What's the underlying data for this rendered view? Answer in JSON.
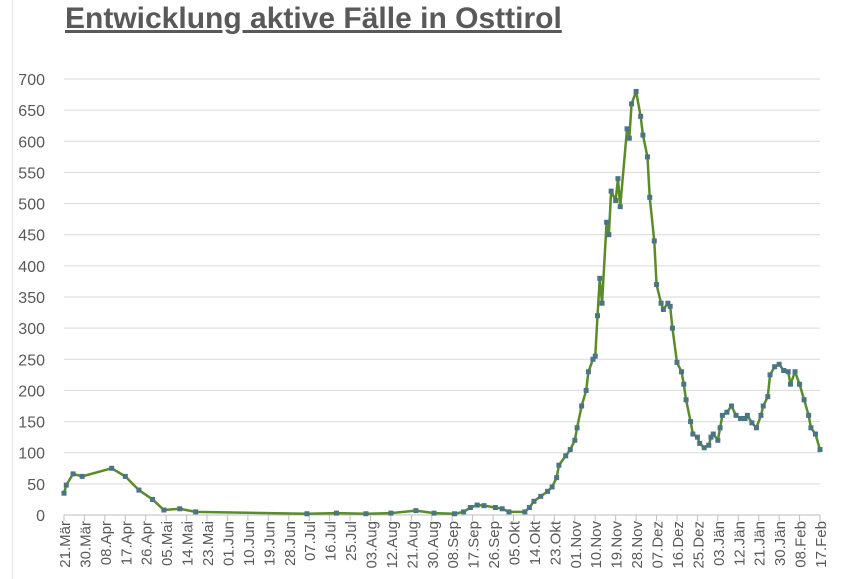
{
  "chart_data": {
    "type": "line",
    "title": "Entwicklung aktive Fälle in Osttirol",
    "xlabel": "",
    "ylabel": "",
    "ylim": [
      0,
      700
    ],
    "yticks": [
      "0",
      "50",
      "100",
      "150",
      "200",
      "250",
      "300",
      "350",
      "400",
      "450",
      "500",
      "550",
      "600",
      "650",
      "700"
    ],
    "xlim": [
      "2020-03-21",
      "2021-02-17"
    ],
    "xticks": [
      "21.Mär",
      "30.Mär",
      "08.Apr",
      "17.Apr",
      "26.Apr",
      "05.Mai",
      "14.Mai",
      "23.Mai",
      "01.Jun",
      "10.Jun",
      "19.Jun",
      "28.Jun",
      "07.Jul",
      "16.Jul",
      "25.Jul",
      "03.Aug",
      "12.Aug",
      "21.Aug",
      "30.Aug",
      "08.Sep",
      "17.Sep",
      "26.Sep",
      "05.Okt",
      "14.Okt",
      "23.Okt",
      "01.Nov",
      "10.Nov",
      "19.Nov",
      "28.Nov",
      "07.Dez",
      "16.Dez",
      "25.Dez",
      "03.Jän",
      "12.Jän",
      "21.Jän",
      "30.Jän",
      "08.Feb",
      "17.Feb"
    ],
    "grid": true,
    "line_color": "#5b8c2a",
    "marker_color": "#4a7585",
    "series": [
      {
        "x": [
          "2020-03-21",
          "2020-03-22",
          "2020-03-25",
          "2020-03-29",
          "2020-04-11",
          "2020-04-17",
          "2020-04-23",
          "2020-04-29",
          "2020-05-04",
          "2020-05-11",
          "2020-05-18",
          "2020-07-06",
          "2020-07-19",
          "2020-08-01",
          "2020-08-12",
          "2020-08-23",
          "2020-08-31",
          "2020-09-09",
          "2020-09-13",
          "2020-09-16",
          "2020-09-19",
          "2020-09-22",
          "2020-09-27",
          "2020-09-30",
          "2020-10-03",
          "2020-10-10",
          "2020-10-12",
          "2020-10-14",
          "2020-10-17",
          "2020-10-20",
          "2020-10-22",
          "2020-10-24",
          "2020-10-25",
          "2020-10-28",
          "2020-10-30",
          "2020-11-01",
          "2020-11-02",
          "2020-11-04",
          "2020-11-06",
          "2020-11-07",
          "2020-11-09",
          "2020-11-10",
          "2020-11-11",
          "2020-11-12",
          "2020-11-13",
          "2020-11-15",
          "2020-11-16",
          "2020-11-17",
          "2020-11-19",
          "2020-11-20",
          "2020-11-21",
          "2020-11-24",
          "2020-11-25",
          "2020-11-26",
          "2020-11-28",
          "2020-11-30",
          "2020-12-01",
          "2020-12-03",
          "2020-12-04",
          "2020-12-06",
          "2020-12-07",
          "2020-12-09",
          "2020-12-10",
          "2020-12-12",
          "2020-12-13",
          "2020-12-14",
          "2020-12-16",
          "2020-12-18",
          "2020-12-19",
          "2020-12-20",
          "2020-12-22",
          "2020-12-23",
          "2020-12-25",
          "2020-12-26",
          "2020-12-28",
          "2020-12-30",
          "2020-12-31",
          "2021-01-01",
          "2021-01-03",
          "2021-01-04",
          "2021-01-05",
          "2021-01-07",
          "2021-01-09",
          "2021-01-11",
          "2021-01-13",
          "2021-01-15",
          "2021-01-16",
          "2021-01-18",
          "2021-01-20",
          "2021-01-22",
          "2021-01-23",
          "2021-01-25",
          "2021-01-26",
          "2021-01-28",
          "2021-01-30",
          "2021-02-01",
          "2021-02-03",
          "2021-02-04",
          "2021-02-06",
          "2021-02-08",
          "2021-02-10",
          "2021-02-12",
          "2021-02-13",
          "2021-02-15",
          "2021-02-17"
        ],
        "values": [
          35,
          48,
          66,
          62,
          75,
          62,
          40,
          25,
          8,
          10,
          5,
          2,
          3,
          2,
          3,
          7,
          3,
          2,
          5,
          12,
          16,
          15,
          12,
          10,
          5,
          5,
          12,
          22,
          30,
          38,
          45,
          60,
          80,
          95,
          105,
          120,
          140,
          175,
          200,
          230,
          250,
          255,
          320,
          380,
          340,
          470,
          450,
          520,
          505,
          540,
          495,
          620,
          605,
          660,
          680,
          640,
          610,
          575,
          510,
          440,
          370,
          340,
          330,
          340,
          335,
          300,
          245,
          230,
          210,
          185,
          150,
          130,
          125,
          115,
          108,
          112,
          125,
          130,
          120,
          140,
          160,
          165,
          175,
          160,
          155,
          155,
          160,
          148,
          140,
          160,
          175,
          190,
          225,
          238,
          242,
          232,
          230,
          210,
          230,
          210,
          185,
          160,
          140,
          130,
          105
        ]
      }
    ]
  }
}
